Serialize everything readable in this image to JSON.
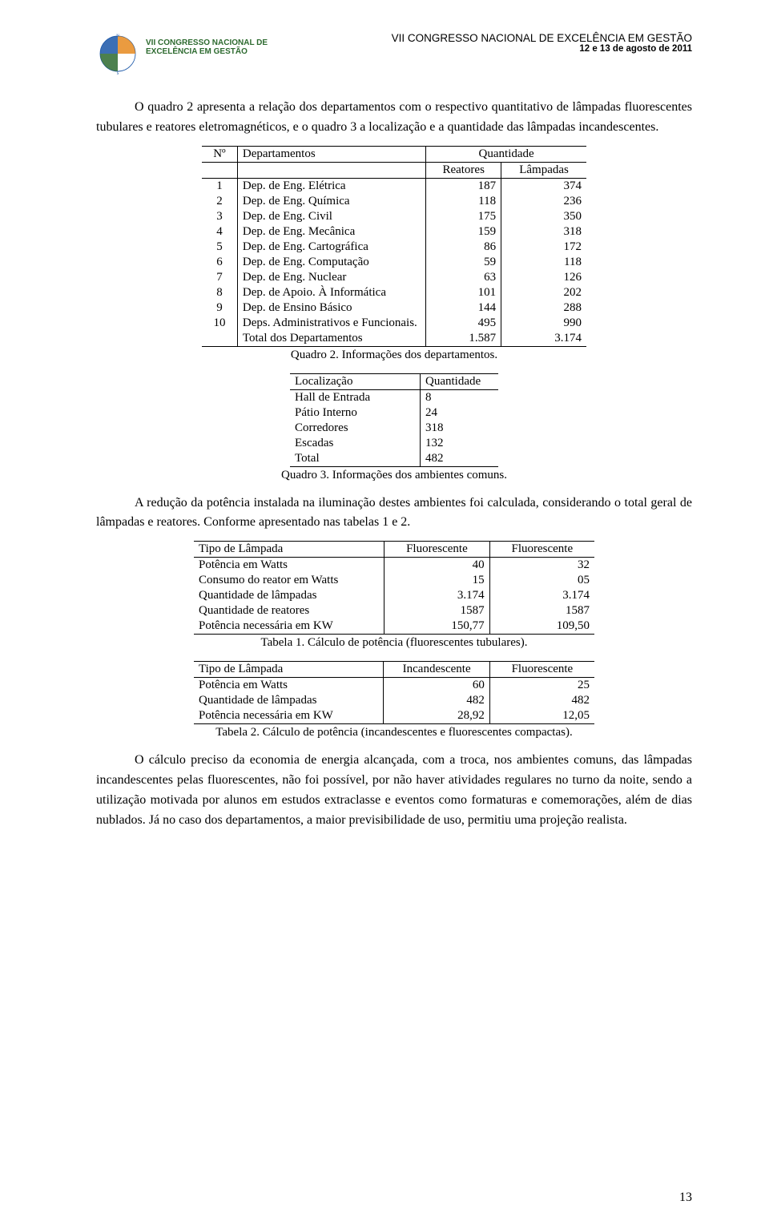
{
  "header": {
    "logo_label1": "VII CONGRESSO NACIONAL DE",
    "logo_label2": "EXCELÊNCIA EM GESTÃO",
    "title": "VII CONGRESSO NACIONAL DE EXCELÊNCIA EM GESTÃO",
    "subtitle": "12 e 13 de agosto de 2011"
  },
  "para1": "O quadro 2 apresenta a relação dos departamentos com o respectivo quantitativo de lâmpadas fluorescentes tubulares e reatores eletromagnéticos, e o quadro 3 a localização e a quantidade das lâmpadas incandescentes.",
  "para2": "A redução da potência instalada na iluminação destes ambientes foi calculada, considerando o total geral de lâmpadas e reatores. Conforme apresentado nas tabelas 1 e 2.",
  "para3": "O cálculo preciso da economia de energia alcançada, com a troca, nos ambientes comuns, das lâmpadas incandescentes pelas fluorescentes, não foi possível, por não haver atividades regulares no turno da noite, sendo a utilização motivada por alunos em estudos extraclasse e eventos como formaturas e comemorações, além de dias nublados. Já no caso dos departamentos, a maior previsibilidade de uso, permitiu uma projeção realista.",
  "quadro2": {
    "h_no": "Nº",
    "h_dep": "Departamentos",
    "h_qty": "Quantidade",
    "h_rea": "Reatores",
    "h_lam": "Lâmpadas",
    "rows": [
      {
        "n": "1",
        "d": "Dep. de Eng. Elétrica",
        "r": "187",
        "l": "374"
      },
      {
        "n": "2",
        "d": "Dep. de Eng. Química",
        "r": "118",
        "l": "236"
      },
      {
        "n": "3",
        "d": "Dep. de Eng. Civil",
        "r": "175",
        "l": "350"
      },
      {
        "n": "4",
        "d": "Dep. de Eng. Mecânica",
        "r": "159",
        "l": "318"
      },
      {
        "n": "5",
        "d": "Dep. de Eng. Cartográfica",
        "r": "86",
        "l": "172"
      },
      {
        "n": "6",
        "d": "Dep. de Eng. Computação",
        "r": "59",
        "l": "118"
      },
      {
        "n": "7",
        "d": "Dep. de Eng. Nuclear",
        "r": "63",
        "l": "126"
      },
      {
        "n": "8",
        "d": "Dep. de Apoio. À Informática",
        "r": "101",
        "l": "202"
      },
      {
        "n": "9",
        "d": "Dep. de Ensino Básico",
        "r": "144",
        "l": "288"
      },
      {
        "n": "10",
        "d": "Deps. Administrativos e Funcionais.",
        "r": "495",
        "l": "990"
      }
    ],
    "total_label": "Total dos Departamentos",
    "total_r": "1.587",
    "total_l": "3.174",
    "caption": "Quadro 2. Informações dos departamentos."
  },
  "quadro3": {
    "h_loc": "Localização",
    "h_qty": "Quantidade",
    "rows": [
      {
        "l": "Hall de Entrada",
        "q": "8"
      },
      {
        "l": "Pátio Interno",
        "q": "24"
      },
      {
        "l": "Corredores",
        "q": "318"
      },
      {
        "l": "Escadas",
        "q": "132"
      },
      {
        "l": "Total",
        "q": "482"
      }
    ],
    "caption": "Quadro 3. Informações dos ambientes comuns."
  },
  "tabela1": {
    "h1": "Tipo de Lâmpada",
    "h2": "Fluorescente",
    "h3": "Fluorescente",
    "rows": [
      {
        "a": "Potência em Watts",
        "b": "40",
        "c": "32"
      },
      {
        "a": "Consumo do reator em Watts",
        "b": "15",
        "c": "05"
      },
      {
        "a": "Quantidade de lâmpadas",
        "b": "3.174",
        "c": "3.174"
      },
      {
        "a": "Quantidade de reatores",
        "b": "1587",
        "c": "1587"
      },
      {
        "a": "Potência necessária em KW",
        "b": "150,77",
        "c": "109,50"
      }
    ],
    "caption": "Tabela 1. Cálculo de potência (fluorescentes tubulares)."
  },
  "tabela2": {
    "h1": "Tipo de Lâmpada",
    "h2": "Incandescente",
    "h3": "Fluorescente",
    "rows": [
      {
        "a": "Potência em Watts",
        "b": "60",
        "c": "25"
      },
      {
        "a": "Quantidade de lâmpadas",
        "b": "482",
        "c": "482"
      },
      {
        "a": "Potência necessária em KW",
        "b": "28,92",
        "c": "12,05"
      }
    ],
    "caption": "Tabela 2. Cálculo de potência (incandescentes e fluorescentes compactas)."
  },
  "page_number": "13",
  "colors": {
    "text": "#000000",
    "logo_green": "#2d6a2f",
    "logo_blue": "#1a56a8",
    "logo_orange": "#e68a1f",
    "background": "#ffffff"
  }
}
